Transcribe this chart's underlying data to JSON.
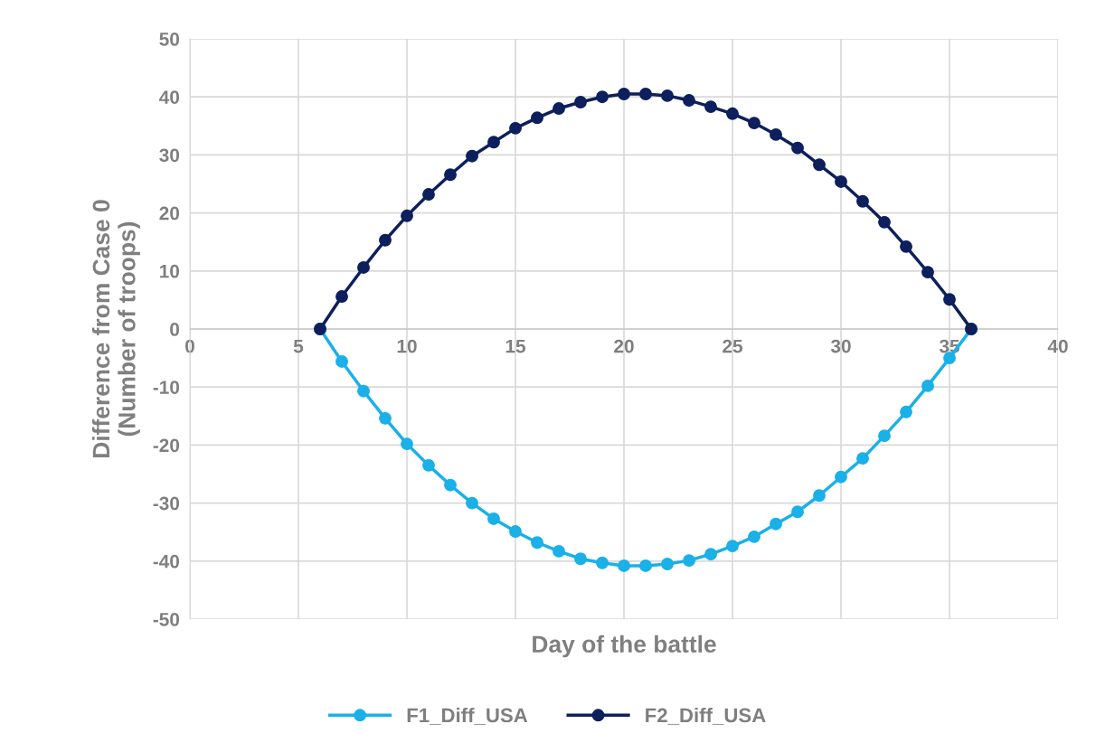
{
  "chart_data": {
    "type": "line",
    "xlabel": "Day of the battle",
    "ylabel": "Difference from Case 0\n(Number of troops)",
    "x": [
      6,
      7,
      8,
      9,
      10,
      11,
      12,
      13,
      14,
      15,
      16,
      17,
      18,
      19,
      20,
      21,
      22,
      23,
      24,
      25,
      26,
      27,
      28,
      29,
      30,
      31,
      32,
      33,
      34,
      35,
      36
    ],
    "series": [
      {
        "name": "F1_Diff_USA",
        "color": "#1ab0e8",
        "values": [
          0,
          -5.6,
          -10.7,
          -15.4,
          -19.8,
          -23.5,
          -26.9,
          -30.0,
          -32.7,
          -34.9,
          -36.8,
          -38.3,
          -39.6,
          -40.3,
          -40.8,
          -40.8,
          -40.5,
          -39.9,
          -38.8,
          -37.4,
          -35.8,
          -33.6,
          -31.5,
          -28.7,
          -25.5,
          -22.3,
          -18.4,
          -14.3,
          -9.8,
          -5.0,
          0
        ]
      },
      {
        "name": "F2_Diff_USA",
        "color": "#0d1f5c",
        "values": [
          0,
          5.6,
          10.6,
          15.3,
          19.5,
          23.2,
          26.6,
          29.8,
          32.2,
          34.6,
          36.4,
          38.0,
          39.1,
          40.0,
          40.5,
          40.5,
          40.2,
          39.4,
          38.3,
          37.1,
          35.5,
          33.5,
          31.2,
          28.3,
          25.4,
          22.0,
          18.4,
          14.2,
          9.8,
          5.1,
          0
        ]
      }
    ],
    "xlim": [
      0,
      40
    ],
    "xticks": [
      0,
      5,
      10,
      15,
      20,
      25,
      30,
      35,
      40
    ],
    "ylim": [
      -50,
      50
    ],
    "yticks": [
      -50,
      -40,
      -30,
      -20,
      -10,
      0,
      10,
      20,
      30,
      40,
      50
    ],
    "grid": true,
    "legend": "bottom",
    "marker": "circle",
    "line_style": "solid"
  }
}
